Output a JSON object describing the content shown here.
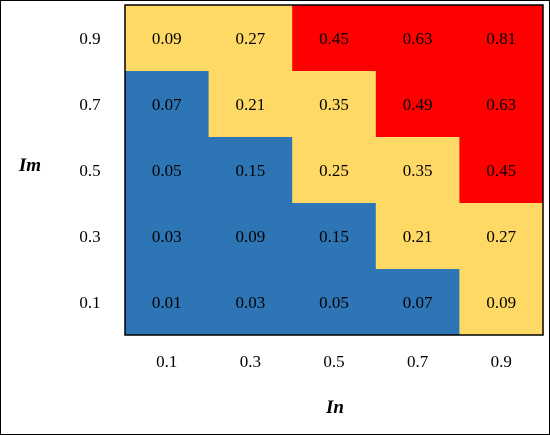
{
  "chart_data": {
    "type": "heatmap",
    "xlabel": "In",
    "ylabel": "Im",
    "x": [
      "0.1",
      "0.3",
      "0.5",
      "0.7",
      "0.9"
    ],
    "y": [
      "0.1",
      "0.3",
      "0.5",
      "0.7",
      "0.9"
    ],
    "rows": [
      {
        "im": "0.9",
        "values": [
          0.09,
          0.27,
          0.45,
          0.63,
          0.81
        ],
        "labels": [
          "0.09",
          "0.27",
          "0.45",
          "0.63",
          "0.81"
        ],
        "levels": [
          "medium",
          "medium",
          "high",
          "high",
          "high"
        ]
      },
      {
        "im": "0.7",
        "values": [
          0.07,
          0.21,
          0.35,
          0.49,
          0.63
        ],
        "labels": [
          "0.07",
          "0.21",
          "0.35",
          "0.49",
          "0.63"
        ],
        "levels": [
          "low",
          "medium",
          "medium",
          "high",
          "high"
        ]
      },
      {
        "im": "0.5",
        "values": [
          0.05,
          0.15,
          0.25,
          0.35,
          0.45
        ],
        "labels": [
          "0.05",
          "0.15",
          "0.25",
          "0.35",
          "0.45"
        ],
        "levels": [
          "low",
          "low",
          "medium",
          "medium",
          "high"
        ]
      },
      {
        "im": "0.3",
        "values": [
          0.03,
          0.09,
          0.15,
          0.21,
          0.27
        ],
        "labels": [
          "0.03",
          "0.09",
          "0.15",
          "0.21",
          "0.27"
        ],
        "levels": [
          "low",
          "low",
          "low",
          "medium",
          "medium"
        ]
      },
      {
        "im": "0.1",
        "values": [
          0.01,
          0.03,
          0.05,
          0.07,
          0.09
        ],
        "labels": [
          "0.01",
          "0.03",
          "0.05",
          "0.07",
          "0.09"
        ],
        "levels": [
          "low",
          "low",
          "low",
          "low",
          "medium"
        ]
      }
    ],
    "colors": {
      "low": "#2e75b6",
      "medium": "#ffd966",
      "high": "#ff0000"
    },
    "grid": false,
    "legend": "none"
  }
}
